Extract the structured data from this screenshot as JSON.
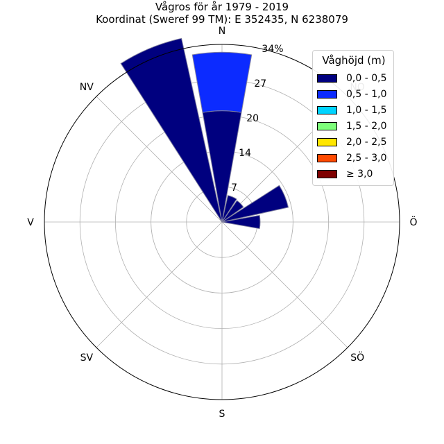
{
  "chart_data": {
    "type": "windrose",
    "title": "Vågros för år 1979 - 2019",
    "subtitle": "Koordinat (Sweref 99 TM): E 352435, N 6238079",
    "directions": [
      "N",
      "NO",
      "Ö",
      "SÖ",
      "S",
      "SV",
      "V",
      "NV"
    ],
    "radial_ticks": [
      "7",
      "14",
      "20",
      "27",
      "34%"
    ],
    "radial_tick_values": [
      6.8,
      13.6,
      20.4,
      27.2,
      34
    ],
    "radial_max": 34,
    "bin_width_deg": 22.5,
    "legend_title": "Våghöjd (m)",
    "legend_position": "top-right",
    "bins": [
      {
        "label": "0,0 - 0,5",
        "color": "#00007f"
      },
      {
        "label": "0,5 - 1,0",
        "color": "#0c2bff"
      },
      {
        "label": "1,0 - 1,5",
        "color": "#00d4ff"
      },
      {
        "label": "1,5 - 2,0",
        "color": "#7dff7a"
      },
      {
        "label": "2,0 - 2,5",
        "color": "#ffe600"
      },
      {
        "label": "2,5 - 3,0",
        "color": "#ff4a00"
      },
      {
        "label": "≥ 3,0",
        "color": "#7f0000"
      }
    ],
    "sectors": [
      {
        "direction_deg": 0,
        "values": [
          21.3,
          11.2
        ]
      },
      {
        "direction_deg": 22.5,
        "values": [
          5.2
        ]
      },
      {
        "direction_deg": 45,
        "values": [
          5.0
        ]
      },
      {
        "direction_deg": 67.5,
        "values": [
          13.0
        ]
      },
      {
        "direction_deg": 90,
        "values": [
          7.3
        ]
      },
      {
        "direction_deg": 337.5,
        "values": [
          36.0
        ]
      }
    ]
  }
}
